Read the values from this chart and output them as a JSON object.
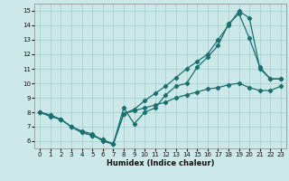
{
  "xlabel": "Humidex (Indice chaleur)",
  "xlim": [
    -0.5,
    23.5
  ],
  "ylim": [
    5.5,
    15.5
  ],
  "xticks": [
    0,
    1,
    2,
    3,
    4,
    5,
    6,
    7,
    8,
    9,
    10,
    11,
    12,
    13,
    14,
    15,
    16,
    17,
    18,
    19,
    20,
    21,
    22,
    23
  ],
  "yticks": [
    6,
    7,
    8,
    9,
    10,
    11,
    12,
    13,
    14,
    15
  ],
  "bg_color": "#cce8e8",
  "grid_color": "#a8d0d0",
  "line_color": "#1a7070",
  "line1_x": [
    0,
    1,
    2,
    3,
    4,
    5,
    6,
    7,
    8,
    9,
    10,
    11,
    12,
    13,
    14,
    15,
    16,
    17,
    18,
    19,
    20,
    21,
    22,
    23
  ],
  "line1_y": [
    8.0,
    7.8,
    7.5,
    7.0,
    6.7,
    6.5,
    6.0,
    5.8,
    8.3,
    7.2,
    8.0,
    8.3,
    9.2,
    9.8,
    10.0,
    11.1,
    11.8,
    12.6,
    14.1,
    14.8,
    13.1,
    11.1,
    10.3,
    10.3
  ],
  "line2_x": [
    0,
    1,
    2,
    3,
    4,
    5,
    6,
    7,
    8,
    9,
    10,
    11,
    12,
    13,
    14,
    15,
    16,
    17,
    18,
    19,
    20,
    21,
    22,
    23
  ],
  "line2_y": [
    8.0,
    7.8,
    7.5,
    7.0,
    6.6,
    6.4,
    6.1,
    5.8,
    7.9,
    8.2,
    8.8,
    9.3,
    9.8,
    10.4,
    11.0,
    11.5,
    12.0,
    13.0,
    14.0,
    15.0,
    14.5,
    11.0,
    10.3,
    10.3
  ],
  "line3_x": [
    0,
    1,
    2,
    3,
    4,
    5,
    6,
    7,
    8,
    9,
    10,
    11,
    12,
    13,
    14,
    15,
    16,
    17,
    18,
    19,
    20,
    21,
    22,
    23
  ],
  "line3_y": [
    8.0,
    7.7,
    7.5,
    7.0,
    6.6,
    6.4,
    6.1,
    5.8,
    7.9,
    8.1,
    8.3,
    8.5,
    8.7,
    9.0,
    9.2,
    9.4,
    9.6,
    9.7,
    9.9,
    10.0,
    9.7,
    9.5,
    9.5,
    9.8
  ]
}
